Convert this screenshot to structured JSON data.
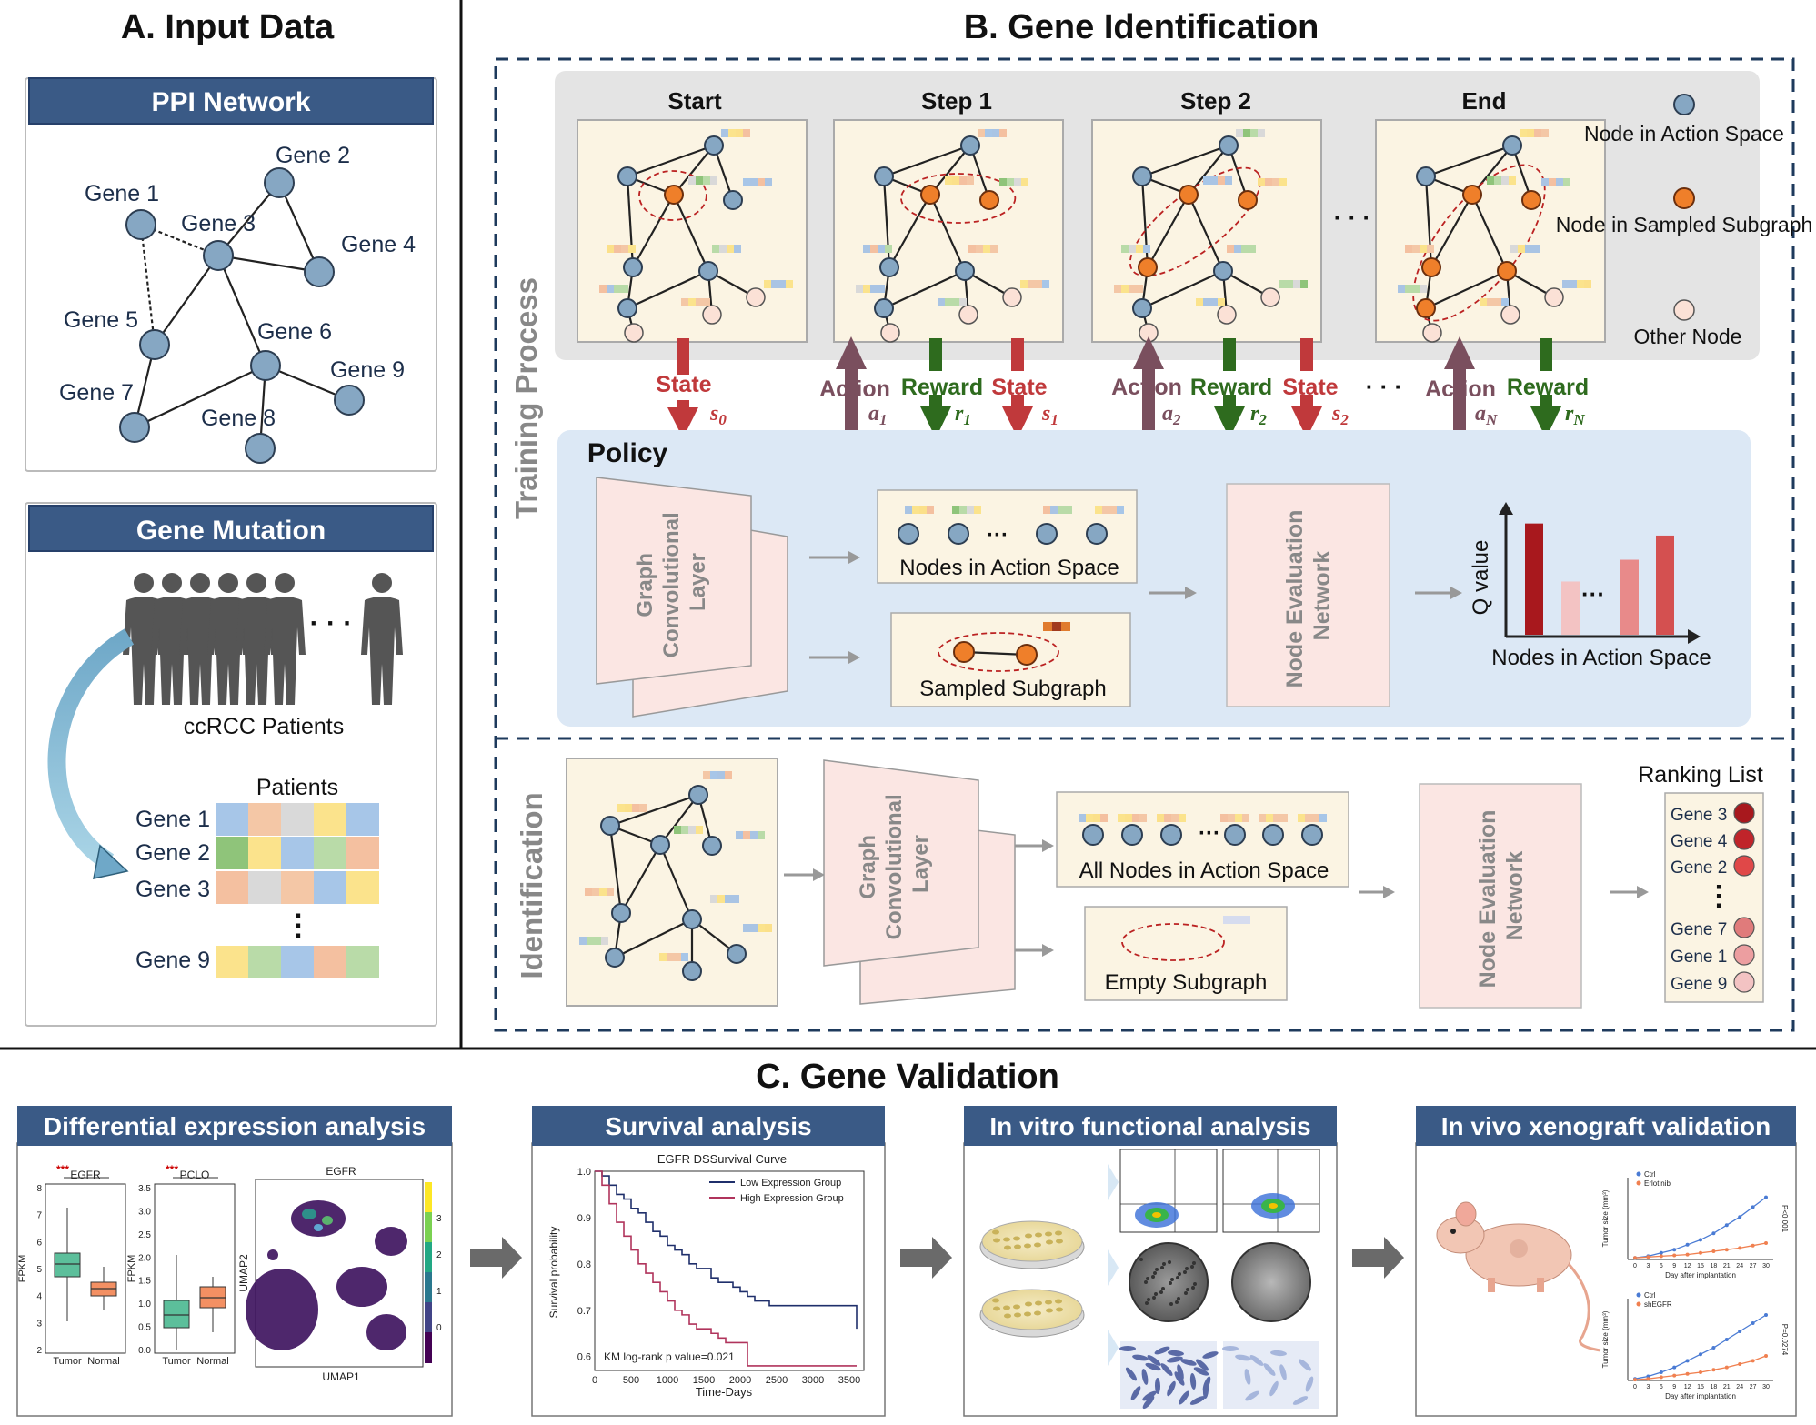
{
  "panel_a": {
    "title": "A. Input Data",
    "ppi": {
      "banner": "PPI Network",
      "genes": [
        "Gene 1",
        "Gene 2",
        "Gene 3",
        "Gene 4",
        "Gene 5",
        "Gene 6",
        "Gene 7",
        "Gene 8",
        "Gene 9"
      ]
    },
    "mutation": {
      "banner": "Gene Mutation",
      "ellipsis": "· · ·",
      "patients_caption": "ccRCC Patients",
      "matrix_header": "Patients",
      "rows": [
        "Gene 1",
        "Gene 2",
        "Gene 3",
        "Gene 9"
      ],
      "vdots": "⋮"
    }
  },
  "panel_b": {
    "title": "B. Gene Identification",
    "training_label": "Training Process",
    "identification_label": "Identification",
    "steps": [
      "Start",
      "Step 1",
      "Step 2",
      "End"
    ],
    "ellipsis": "· · ·",
    "legend": {
      "action_node": "Node in Action Space",
      "sampled_node": "Node in Sampled Subgraph",
      "other_node": "Other Node"
    },
    "signals": {
      "state": "State",
      "action": "Action",
      "reward": "Reward",
      "s0": "s0",
      "a1": "a1",
      "r1": "r1",
      "s1": "s1",
      "a2": "a2",
      "r2": "r2",
      "s2": "s2",
      "aN": "aN",
      "rN": "rN"
    },
    "policy": {
      "title": "Policy",
      "gcl": "Graph Convolutional Layer",
      "nodes_action": "Nodes in Action Space",
      "sampled_subgraph": "Sampled Subgraph",
      "nen": "Node Evaluation Network",
      "q_value": "Q value",
      "chart_xlabel": "Nodes in Action Space"
    },
    "identification": {
      "gcl": "Graph Convolutional Layer",
      "all_nodes": "All Nodes in Action Space",
      "empty_subgraph": "Empty Subgraph",
      "nen": "Node Evaluation Network",
      "ranking_title": "Ranking List",
      "ranking": [
        "Gene 3",
        "Gene 4",
        "Gene 2",
        "Gene 7",
        "Gene 1",
        "Gene 9"
      ],
      "ranking_colors": [
        "#a8181d",
        "#c0242a",
        "#e04848",
        "#e07b7b",
        "#ec9ea0",
        "#f3c3c3"
      ]
    }
  },
  "panel_c": {
    "title": "C. Gene Validation",
    "dea": {
      "banner": "Differential expression analysis",
      "box1_title": "EGFR",
      "box2_title": "PCLO",
      "ylabel": "FPKM",
      "groups": [
        "Tumor",
        "Normal"
      ],
      "sig": "***",
      "umap_title": "EGFR",
      "umap_x": "UMAP1",
      "umap_y": "UMAP2",
      "colorbar_ticks": [
        "3",
        "2",
        "1",
        "0"
      ]
    },
    "survival": {
      "banner": "Survival analysis",
      "title": "EGFR DSSurvival Curve",
      "legend_low": "Low Expression Group",
      "legend_high": "High Expression Group",
      "ylabel": "Survival probability",
      "xlabel": "Time-Days",
      "pvalue": "KM log-rank p value=0.021",
      "xticks": [
        "0",
        "500",
        "1000",
        "1500",
        "2000",
        "2500",
        "3000",
        "3500"
      ],
      "yticks": [
        "1.0",
        "0.9",
        "0.8",
        "0.7",
        "0.6"
      ]
    },
    "invitro": {
      "banner": "In vitro functional analysis"
    },
    "invivo": {
      "banner": "In vivo xenograft validation",
      "legend1": [
        "Ctrl",
        "Erlotinib"
      ],
      "legend2": [
        "Ctrl",
        "shEGFR"
      ],
      "ylabel": "Tumor size (mm³)",
      "xlabel": "Day after implantation",
      "pval1": "P<0.001",
      "pval2": "P=0.0274"
    }
  },
  "chart_data": [
    {
      "type": "bar",
      "title": "",
      "xlabel": "Nodes in Action Space",
      "ylabel": "Q value",
      "categories": [
        "",
        "",
        "",
        ""
      ],
      "values": [
        0.92,
        0.44,
        0.62,
        0.82
      ],
      "colors": [
        "#a8181d",
        "#f3c3c3",
        "#e88a8a",
        "#d45050"
      ]
    },
    {
      "type": "line",
      "title": "EGFR DSSurvival Curve",
      "xlabel": "Time-Days",
      "ylabel": "Survival probability",
      "xlim": [
        0,
        3700
      ],
      "ylim": [
        0.57,
        1.0
      ],
      "series": [
        {
          "name": "Low Expression Group",
          "color": "#1f2f6b",
          "x": [
            0,
            100,
            200,
            300,
            400,
            500,
            600,
            700,
            800,
            900,
            1000,
            1100,
            1200,
            1300,
            1400,
            1500,
            1600,
            1700,
            1800,
            1900,
            2000,
            2100,
            2200,
            2400,
            2600,
            2800,
            3000,
            3200,
            3400,
            3550,
            3600
          ],
          "y": [
            1.0,
            0.99,
            0.97,
            0.95,
            0.94,
            0.92,
            0.91,
            0.89,
            0.87,
            0.86,
            0.84,
            0.83,
            0.82,
            0.8,
            0.79,
            0.79,
            0.77,
            0.76,
            0.76,
            0.75,
            0.74,
            0.73,
            0.72,
            0.71,
            0.71,
            0.71,
            0.71,
            0.71,
            0.71,
            0.71,
            0.66
          ]
        },
        {
          "name": "High Expression Group",
          "color": "#b0345c",
          "x": [
            0,
            100,
            200,
            300,
            400,
            500,
            600,
            700,
            800,
            900,
            1000,
            1100,
            1200,
            1300,
            1400,
            1500,
            1600,
            1700,
            1800,
            1900,
            2000,
            2100,
            2200,
            2500,
            3000,
            3600
          ],
          "y": [
            1.0,
            0.97,
            0.93,
            0.89,
            0.86,
            0.83,
            0.8,
            0.78,
            0.76,
            0.74,
            0.72,
            0.7,
            0.69,
            0.67,
            0.66,
            0.66,
            0.65,
            0.64,
            0.63,
            0.63,
            0.63,
            0.58,
            0.58,
            0.58,
            0.58,
            0.58
          ]
        }
      ]
    }
  ]
}
